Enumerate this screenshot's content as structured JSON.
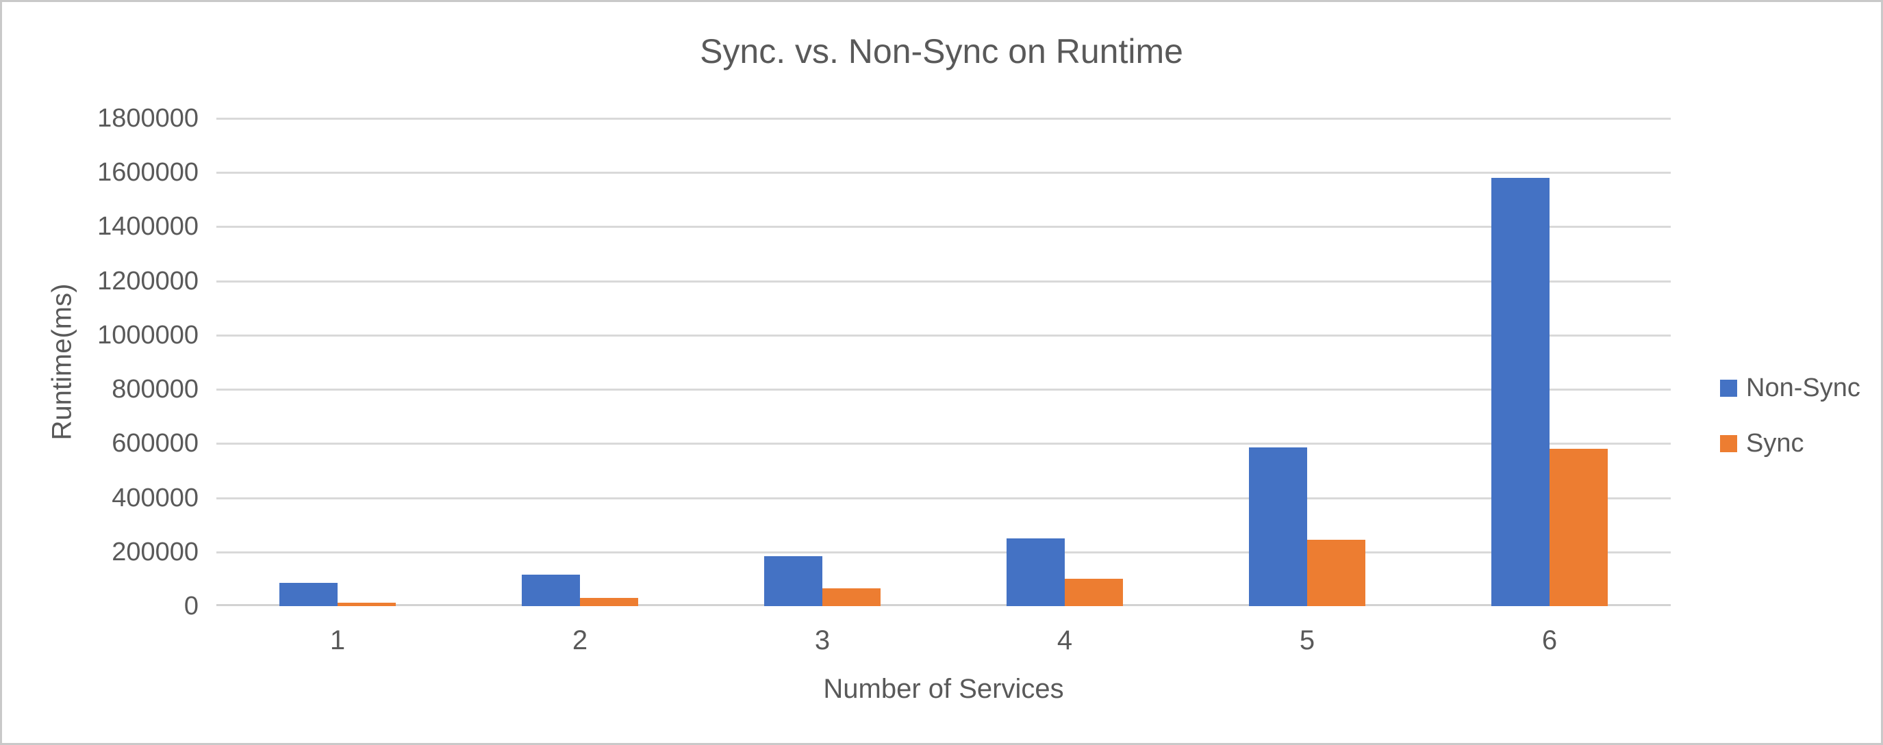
{
  "chart_data": {
    "type": "bar",
    "title": "Sync. vs. Non-Sync on Runtime",
    "xlabel": "Number of Services",
    "ylabel": "Runtime(ms)",
    "categories": [
      "1",
      "2",
      "3",
      "4",
      "5",
      "6"
    ],
    "series": [
      {
        "name": "Non-Sync",
        "color": "#4472C4",
        "values": [
          85000,
          115000,
          185000,
          250000,
          585000,
          1580000
        ]
      },
      {
        "name": "Sync",
        "color": "#ED7D31",
        "values": [
          13000,
          30000,
          65000,
          100000,
          245000,
          580000
        ]
      }
    ],
    "ylim": [
      0,
      1800000
    ],
    "ytick_step": 200000,
    "ytick_labels": [
      "0",
      "200000",
      "400000",
      "600000",
      "800000",
      "1000000",
      "1200000",
      "1400000",
      "1600000",
      "1800000"
    ],
    "grid": true,
    "legend_position": "right",
    "colors": {
      "text": "#595959",
      "gridline": "#d9d9d9",
      "axis_line": "#d2d2d2",
      "frame_border": "#c9c9c9",
      "background": "#ffffff"
    }
  }
}
